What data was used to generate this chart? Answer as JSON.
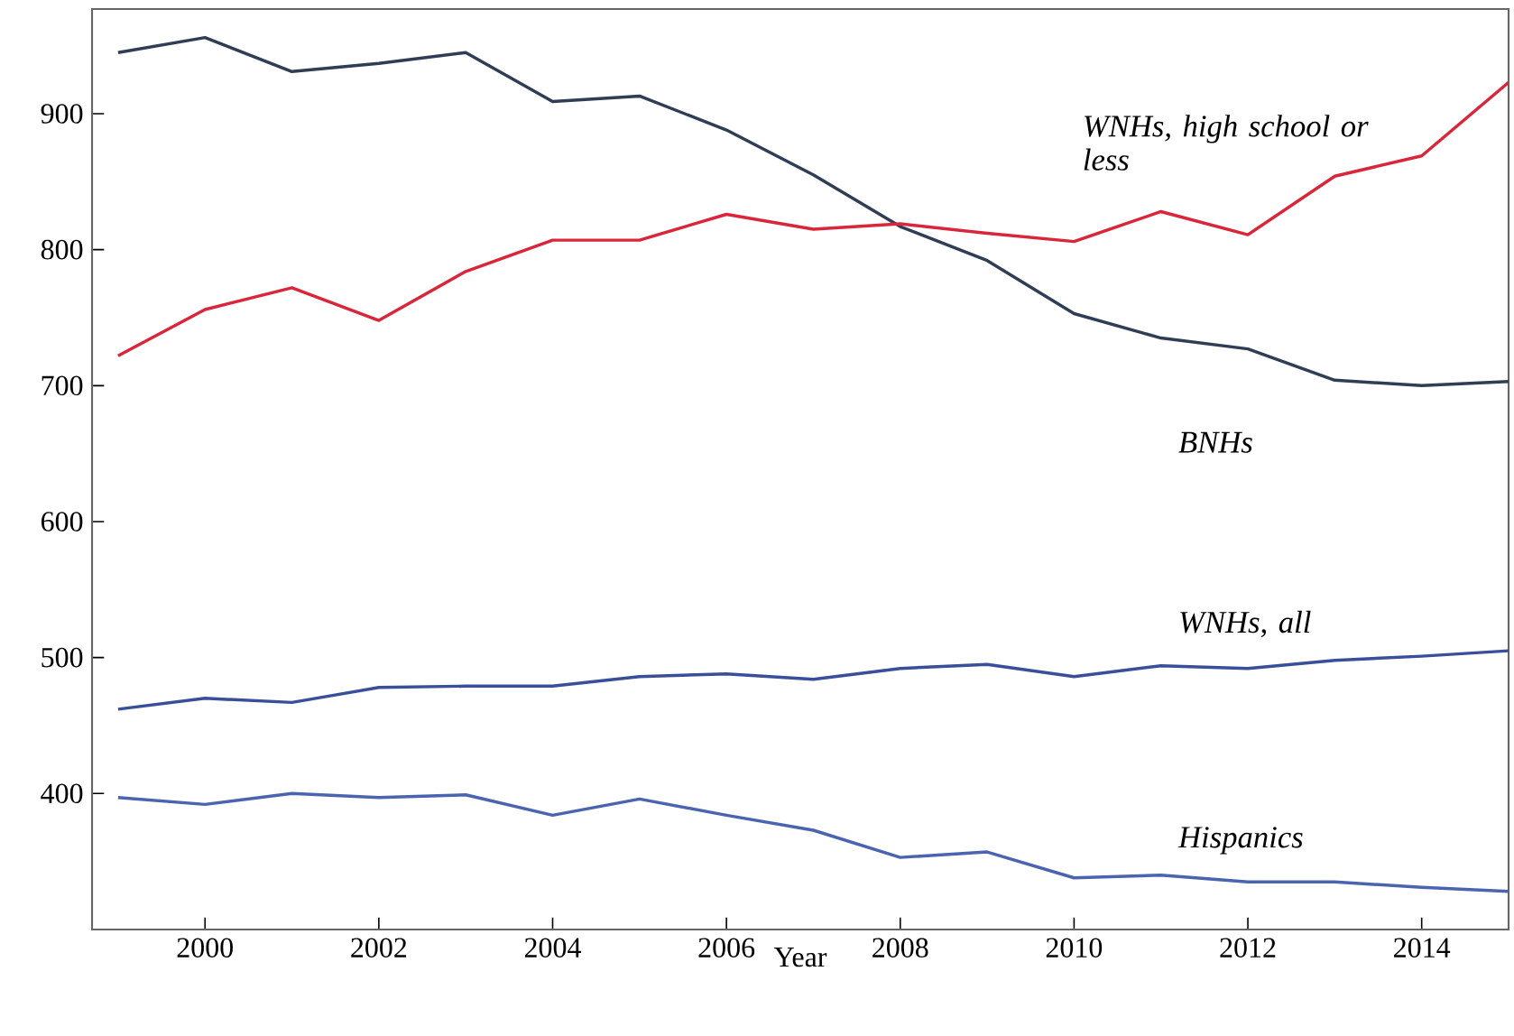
{
  "chart_data": {
    "type": "line",
    "xlabel": "Year",
    "x": [
      1999,
      2000,
      2001,
      2002,
      2003,
      2004,
      2005,
      2006,
      2007,
      2008,
      2009,
      2010,
      2011,
      2012,
      2013,
      2014,
      2015
    ],
    "xlim": [
      1998.7,
      2015
    ],
    "xticks": [
      2000,
      2002,
      2004,
      2006,
      2008,
      2010,
      2012,
      2014
    ],
    "ylim": [
      300,
      977
    ],
    "yticks": [
      400,
      500,
      600,
      700,
      800,
      900
    ],
    "series": [
      {
        "name": "BNHs",
        "color": "#2f3d55",
        "values": [
          945,
          956,
          931,
          937,
          945,
          909,
          913,
          888,
          855,
          817,
          792,
          753,
          735,
          727,
          704,
          700,
          703
        ]
      },
      {
        "name": "WNHs, high school or less",
        "color": "#d9263a",
        "values": [
          722,
          756,
          772,
          748,
          784,
          807,
          807,
          826,
          815,
          819,
          812,
          806,
          828,
          811,
          854,
          869,
          923
        ]
      },
      {
        "name": "WNHs, all",
        "color": "#3a4f9a",
        "values": [
          462,
          470,
          467,
          478,
          479,
          479,
          486,
          488,
          484,
          492,
          495,
          486,
          494,
          492,
          498,
          501,
          505
        ]
      },
      {
        "name": "Hispanics",
        "color": "#4a64b0",
        "values": [
          397,
          392,
          400,
          397,
          399,
          384,
          396,
          384,
          373,
          353,
          357,
          338,
          340,
          335,
          335,
          331,
          328
        ]
      }
    ]
  }
}
